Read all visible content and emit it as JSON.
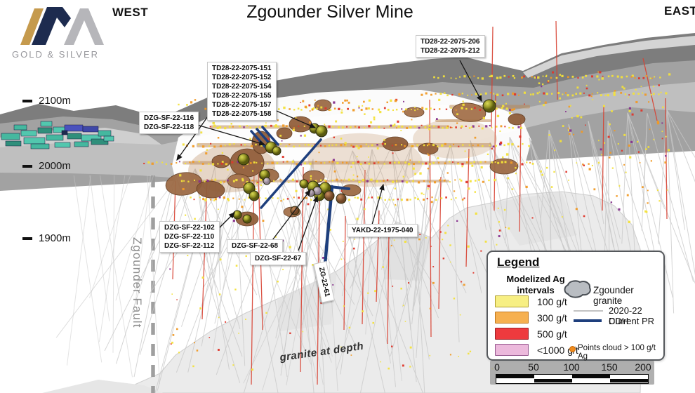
{
  "header": {
    "west": "WEST",
    "east": "EAST",
    "title": "Zgounder Silver Mine"
  },
  "logo": {
    "subtitle": "GOLD & SILVER"
  },
  "elevations": [
    {
      "label": "2100m"
    },
    {
      "label": "2000m"
    },
    {
      "label": "1900m"
    }
  ],
  "fault": {
    "label": "Zgounder Fault"
  },
  "granite": {
    "label": "granite at depth"
  },
  "callouts": {
    "td": [
      "TD28-22-2075-151",
      "TD28-22-2075-152",
      "TD28-22-2075-154",
      "TD28-22-2075-155",
      "TD28-22-2075-157",
      "TD28-22-2075-158"
    ],
    "td2": [
      "TD28-22-2075-206",
      "TD28-22-2075-212"
    ],
    "dzg116": [
      "DZG-SF-22-116",
      "DZG-SF-22-118"
    ],
    "dzg102": [
      "DZG-SF-22-102",
      "DZG-SF-22-110",
      "DZG-SF-22-112"
    ],
    "dzg68": "DZG-SF-22-68",
    "dzg67": "DZG-SF-22-67",
    "yakd": "YAKD-22-1975-040",
    "zg61": "ZG-22-61"
  },
  "legend": {
    "title": "Legend",
    "subtitle": "Modelized Ag intervals",
    "intervals": [
      {
        "label": "100 g/t",
        "color": "#f7ef83",
        "border": "#b0a030"
      },
      {
        "label": "300 g/t",
        "color": "#f6b050",
        "border": "#c07820"
      },
      {
        "label": "500 g/t",
        "color": "#ee3a3e",
        "border": "#9c1f26"
      },
      {
        "label": "<1000 g/t",
        "color": "#ecb9dc",
        "border": "#96588f"
      }
    ],
    "granite_label": "Zgounder granite",
    "ddh_label": "2020-22 DDH",
    "pr_label": "Current PR",
    "points_label": "Points cloud > 100 g/t Ag"
  },
  "scalebar": {
    "ticks": [
      "0",
      "50",
      "100",
      "150",
      "200"
    ]
  },
  "colors": {
    "accent_navy": "#1e3f7d",
    "dot_yellow": "#f3e23a",
    "dot_orange": "#f09a26",
    "dot_red": "#df372b",
    "dot_purple": "#87308d",
    "drill_gray": "#c8c8c8",
    "drill_red": "#d84233",
    "ore_brown": "#96613c",
    "terrain_dark": "#7d7d7d",
    "terrain_mid": "#a2a2a2",
    "terrain_band": "#bfbfbf",
    "granite_fill": "#ececec",
    "stope_teal": "#45b89f",
    "stope_blue": "#4a52bd"
  }
}
